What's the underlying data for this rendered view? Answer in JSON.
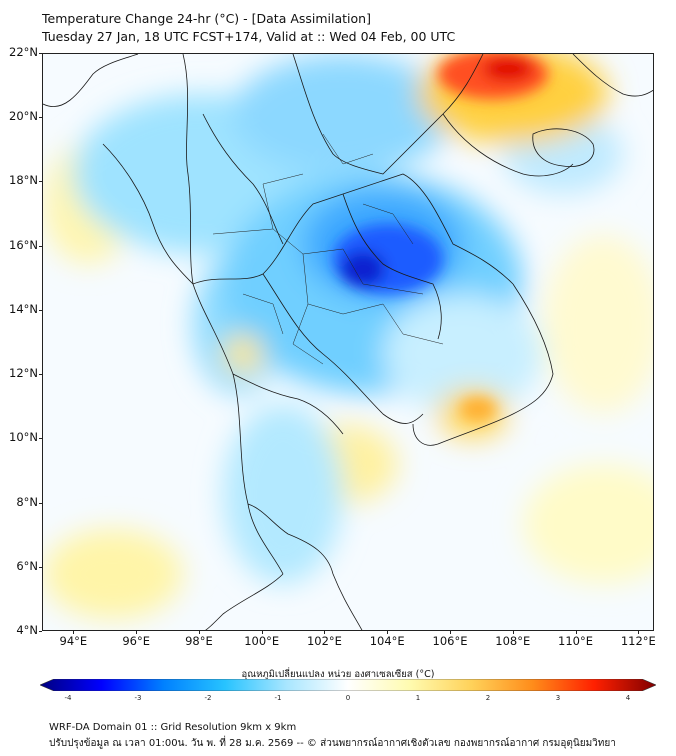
{
  "header": {
    "title_line1": "Temperature Change 24-hr (°C) - [Data Assimilation]",
    "title_line2": "Tuesday 27 Jan, 18 UTC FCST+174, Valid at :: Wed 04 Feb, 00 UTC"
  },
  "map": {
    "lat_labels": [
      "22°N",
      "20°N",
      "18°N",
      "16°N",
      "14°N",
      "12°N",
      "10°N",
      "8°N",
      "6°N",
      "4°N"
    ],
    "lon_labels": [
      "94°E",
      "96°E",
      "98°E",
      "100°E",
      "102°E",
      "104°E",
      "106°E",
      "108°E",
      "110°E",
      "112°E"
    ]
  },
  "colorbar": {
    "title": "อุณหภูมิเปลี่ยนแปลง หน่วย องศาเซลเซียส (°C)",
    "tick_labels": [
      "-4",
      "-3",
      "-2",
      "-1",
      "0",
      "1",
      "2",
      "3",
      "4"
    ],
    "colors": [
      "#00007f",
      "#0000ff",
      "#0080ff",
      "#27c3ff",
      "#a8e6ff",
      "#ffffff",
      "#fffbb0",
      "#ffd25a",
      "#ff8c1a",
      "#ff2000",
      "#800000"
    ]
  },
  "footer": {
    "line1": "WRF-DA Domain 01 :: Grid Resolution 9km x 9km",
    "line2": "ปรับปรุงข้อมูล ณ เวลา 01:00น. วัน พ. ที่ 28 ม.ค. 2569 -- © ส่วนพยากรณ์อากาศเชิงตัวเลข กองพยากรณ์อากาศ กรมอุตุนิยมวิทยา"
  }
}
